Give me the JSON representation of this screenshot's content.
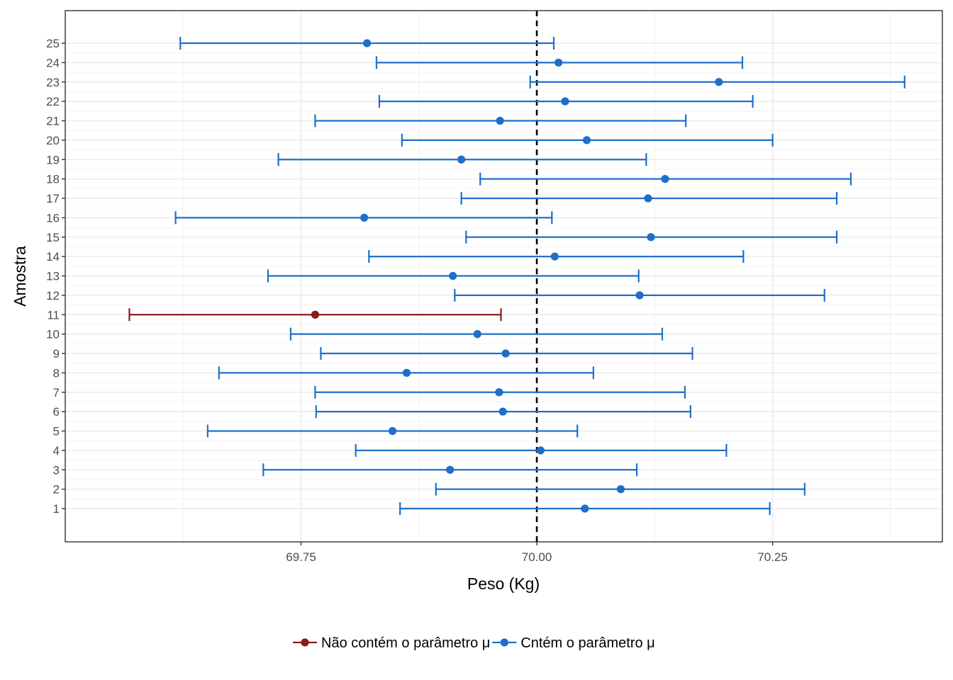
{
  "chart_data": {
    "type": "errorbar",
    "orientation": "horizontal",
    "title": "",
    "xlabel": "Peso (Kg)",
    "ylabel": "Amostra",
    "xlim": [
      69.5,
      70.43
    ],
    "x_ticks": [
      69.75,
      70.0,
      70.25
    ],
    "x_tick_labels": [
      "69.75",
      "70.00",
      "70.25"
    ],
    "y_categories": [
      "1",
      "2",
      "3",
      "4",
      "5",
      "6",
      "7",
      "8",
      "9",
      "10",
      "11",
      "12",
      "13",
      "14",
      "15",
      "16",
      "17",
      "18",
      "19",
      "20",
      "21",
      "22",
      "23",
      "24",
      "25"
    ],
    "reference_line": {
      "x": 70.0,
      "style": "dashed",
      "color": "#000000"
    },
    "grid": true,
    "legend_position": "bottom",
    "series": [
      {
        "name": "Não contém o parâmetro μ",
        "color": "#8b1a1a",
        "points": [
          {
            "sample": 11,
            "mean": 69.765,
            "lower": 69.568,
            "upper": 69.962
          }
        ]
      },
      {
        "name": "Cntém o parâmetro μ",
        "color": "#1f6fc9",
        "points": [
          {
            "sample": 1,
            "mean": 70.051,
            "lower": 69.855,
            "upper": 70.247
          },
          {
            "sample": 2,
            "mean": 70.089,
            "lower": 69.893,
            "upper": 70.284
          },
          {
            "sample": 3,
            "mean": 69.908,
            "lower": 69.71,
            "upper": 70.106
          },
          {
            "sample": 4,
            "mean": 70.004,
            "lower": 69.808,
            "upper": 70.201
          },
          {
            "sample": 5,
            "mean": 69.847,
            "lower": 69.651,
            "upper": 70.043
          },
          {
            "sample": 6,
            "mean": 69.964,
            "lower": 69.766,
            "upper": 70.163
          },
          {
            "sample": 7,
            "mean": 69.96,
            "lower": 69.765,
            "upper": 70.157
          },
          {
            "sample": 8,
            "mean": 69.862,
            "lower": 69.663,
            "upper": 70.06
          },
          {
            "sample": 9,
            "mean": 69.967,
            "lower": 69.771,
            "upper": 70.165
          },
          {
            "sample": 10,
            "mean": 69.937,
            "lower": 69.739,
            "upper": 70.133
          },
          {
            "sample": 12,
            "mean": 70.109,
            "lower": 69.913,
            "upper": 70.305
          },
          {
            "sample": 13,
            "mean": 69.911,
            "lower": 69.715,
            "upper": 70.108
          },
          {
            "sample": 14,
            "mean": 70.019,
            "lower": 69.822,
            "upper": 70.219
          },
          {
            "sample": 15,
            "mean": 70.121,
            "lower": 69.925,
            "upper": 70.318
          },
          {
            "sample": 16,
            "mean": 69.817,
            "lower": 69.617,
            "upper": 70.016
          },
          {
            "sample": 17,
            "mean": 70.118,
            "lower": 69.92,
            "upper": 70.318
          },
          {
            "sample": 18,
            "mean": 70.136,
            "lower": 69.94,
            "upper": 70.333
          },
          {
            "sample": 19,
            "mean": 69.92,
            "lower": 69.726,
            "upper": 70.116
          },
          {
            "sample": 20,
            "mean": 70.053,
            "lower": 69.857,
            "upper": 70.25
          },
          {
            "sample": 21,
            "mean": 69.961,
            "lower": 69.765,
            "upper": 70.158
          },
          {
            "sample": 22,
            "mean": 70.03,
            "lower": 69.833,
            "upper": 70.229
          },
          {
            "sample": 23,
            "mean": 70.193,
            "lower": 69.993,
            "upper": 70.39
          },
          {
            "sample": 24,
            "mean": 70.023,
            "lower": 69.83,
            "upper": 70.218
          },
          {
            "sample": 25,
            "mean": 69.82,
            "lower": 69.622,
            "upper": 70.018
          }
        ]
      }
    ]
  }
}
